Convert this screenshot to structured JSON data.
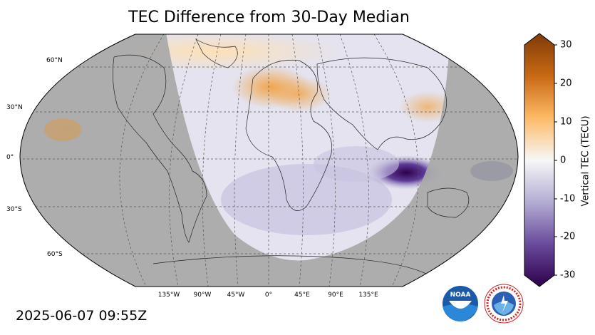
{
  "title": "TEC Difference from 30-Day Median",
  "timestamp": "2025-06-07 09:55Z",
  "map": {
    "projection": "Robinson",
    "lat_labels": [
      "60°N",
      "30°N",
      "0°",
      "30°S",
      "60°S"
    ],
    "lon_labels": [
      "135°W",
      "90°W",
      "45°W",
      "0°",
      "45°E",
      "90°E",
      "135°E"
    ],
    "night_side_shading": "#a8a8a8",
    "day_side_base": "#e6e6f0",
    "features": [
      {
        "name": "warm anomaly europe",
        "color": "#f5c48a"
      },
      {
        "name": "cold anomaly indian ocean",
        "color": "#3e1565"
      }
    ]
  },
  "colorbar": {
    "label": "Vertical TEC (TECU)",
    "ticks": [
      "30",
      "20",
      "10",
      "0",
      "-10",
      "-20",
      "-30"
    ],
    "range": [
      -30,
      30
    ],
    "colors": {
      "max": "#7f3b08",
      "mid_warm": "#fdb863",
      "zero": "#f7f7f7",
      "mid_cool": "#b2abd2",
      "min": "#2d004b"
    }
  },
  "logos": {
    "noaa_text": "NOAA",
    "nws_text": "NATIONAL WEATHER SERVICE"
  }
}
